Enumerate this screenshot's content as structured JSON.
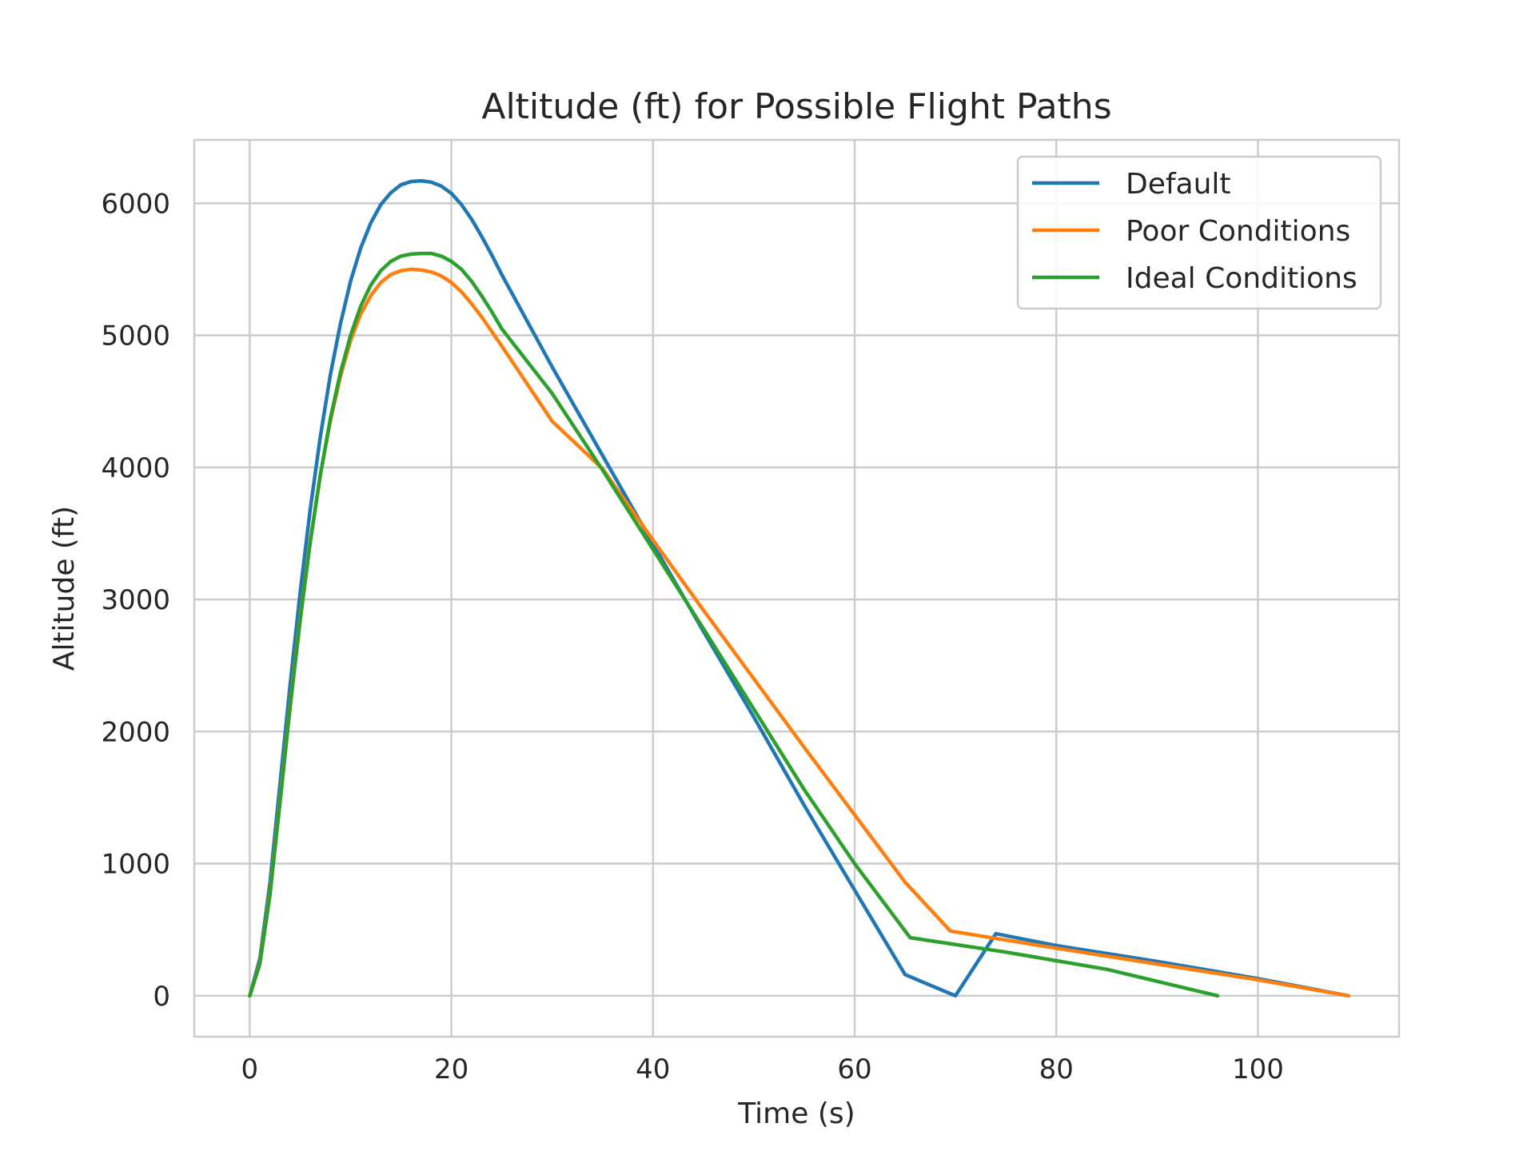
{
  "chart_data": {
    "type": "line",
    "title": "Altitude (ft) for Possible Flight Paths",
    "xlabel": "Time (s)",
    "ylabel": "Altitude (ft)",
    "xlim": [
      -5.5,
      114
    ],
    "ylim": [
      -310,
      6480
    ],
    "xticks": [
      0,
      20,
      40,
      60,
      80,
      100
    ],
    "yticks": [
      0,
      1000,
      2000,
      3000,
      4000,
      5000,
      6000
    ],
    "grid": true,
    "legend_position": "top-right",
    "series": [
      {
        "name": "Default",
        "color": "#1f77b4",
        "x": [
          0,
          1,
          2,
          3,
          4,
          5,
          6,
          7,
          8,
          9,
          10,
          11,
          12,
          13,
          14,
          15,
          16,
          17,
          18,
          19,
          20,
          21,
          22,
          23,
          24,
          25,
          30,
          35,
          40,
          45,
          50,
          55,
          60,
          65,
          70,
          74,
          80,
          90,
          100,
          109
        ],
        "y": [
          0,
          280,
          850,
          1600,
          2350,
          3050,
          3680,
          4230,
          4700,
          5090,
          5410,
          5660,
          5850,
          5990,
          6080,
          6140,
          6165,
          6170,
          6160,
          6130,
          6075,
          5990,
          5880,
          5750,
          5610,
          5460,
          4760,
          4090,
          3420,
          2760,
          2110,
          1440,
          800,
          160,
          0,
          470,
          380,
          260,
          130,
          0
        ]
      },
      {
        "name": "Poor Conditions",
        "color": "#ff7f0e",
        "x": [
          0,
          1,
          2,
          3,
          4,
          5,
          6,
          7,
          8,
          9,
          10,
          11,
          12,
          13,
          14,
          15,
          16,
          17,
          18,
          19,
          20,
          21,
          22,
          23,
          24,
          25,
          30,
          35,
          40,
          45,
          50,
          55,
          60,
          65,
          69.5,
          80,
          90,
          100,
          109
        ],
        "y": [
          0,
          250,
          780,
          1480,
          2200,
          2860,
          3440,
          3940,
          4350,
          4690,
          4960,
          5160,
          5300,
          5400,
          5460,
          5490,
          5500,
          5495,
          5480,
          5450,
          5400,
          5330,
          5240,
          5140,
          5030,
          4920,
          4350,
          3990,
          3450,
          2920,
          2400,
          1880,
          1370,
          860,
          490,
          360,
          240,
          120,
          0
        ]
      },
      {
        "name": "Ideal Conditions",
        "color": "#2ca02c",
        "x": [
          0,
          1,
          2,
          3,
          4,
          5,
          6,
          7,
          8,
          9,
          10,
          11,
          12,
          13,
          14,
          15,
          16,
          17,
          18,
          19,
          20,
          21,
          22,
          23,
          24,
          25,
          30,
          35,
          40,
          45,
          50,
          55,
          60,
          65.5,
          75,
          85,
          96
        ],
        "y": [
          0,
          240,
          760,
          1460,
          2180,
          2840,
          3430,
          3940,
          4370,
          4720,
          5000,
          5220,
          5380,
          5490,
          5560,
          5600,
          5615,
          5620,
          5620,
          5600,
          5560,
          5500,
          5410,
          5300,
          5180,
          5050,
          4560,
          3980,
          3380,
          2780,
          2170,
          1560,
          1000,
          440,
          330,
          200,
          0
        ]
      }
    ]
  }
}
